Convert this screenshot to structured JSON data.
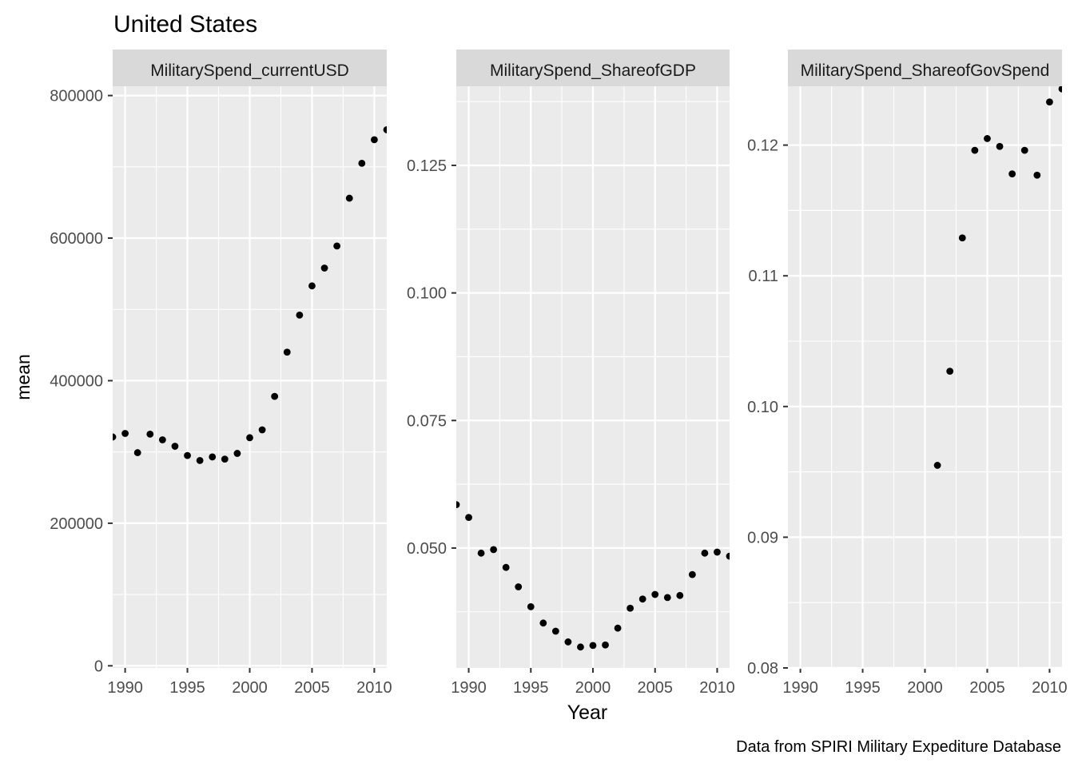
{
  "title": "United States",
  "ylabel": "mean",
  "xlabel": "Year",
  "caption": "Data from SPIRI Military Expediture Database",
  "colors": {
    "panel_bg": "#EBEBEB",
    "grid": "#FFFFFF",
    "strip_bg": "#D9D9D9",
    "point": "#000000",
    "tick_text": "#4D4D4D"
  },
  "chart_data": [
    {
      "type": "scatter",
      "strip": "MilitarySpend_currentUSD",
      "xlim": [
        1989,
        2011
      ],
      "ylim": [
        -3000,
        813000
      ],
      "x_ticks": [
        1990,
        1995,
        2000,
        2005,
        2010
      ],
      "x_tick_labels": [
        "1990",
        "1995",
        "2000",
        "2005",
        "2010"
      ],
      "y_ticks": [
        0,
        200000,
        400000,
        600000,
        800000
      ],
      "y_tick_labels": [
        "0",
        "200000",
        "400000",
        "600000",
        "800000"
      ],
      "x": [
        1989,
        1990,
        1991,
        1992,
        1993,
        1994,
        1995,
        1996,
        1997,
        1998,
        1999,
        2000,
        2001,
        2002,
        2003,
        2004,
        2005,
        2006,
        2007,
        2008,
        2009,
        2010,
        2011
      ],
      "y": [
        321000,
        326000,
        299000,
        325000,
        317000,
        308000,
        295000,
        288000,
        293000,
        290000,
        298000,
        320000,
        331000,
        378000,
        440000,
        492000,
        533000,
        558000,
        589000,
        656000,
        705000,
        738000,
        752000
      ]
    },
    {
      "type": "scatter",
      "strip": "MilitarySpend_ShareofGDP",
      "xlim": [
        1989,
        2011
      ],
      "ylim": [
        0.0265,
        0.1405
      ],
      "x_ticks": [
        1990,
        1995,
        2000,
        2005,
        2010
      ],
      "x_tick_labels": [
        "1990",
        "1995",
        "2000",
        "2005",
        "2010"
      ],
      "y_ticks": [
        0.05,
        0.075,
        0.1,
        0.125
      ],
      "y_tick_labels": [
        "0.050",
        "0.075",
        "0.100",
        "0.125"
      ],
      "x": [
        1989,
        1990,
        1991,
        1992,
        1993,
        1994,
        1995,
        1996,
        1997,
        1998,
        1999,
        2000,
        2001,
        2002,
        2003,
        2004,
        2005,
        2006,
        2007,
        2008,
        2009,
        2010,
        2011
      ],
      "y": [
        0.0585,
        0.056,
        0.049,
        0.0497,
        0.0462,
        0.0424,
        0.0385,
        0.0353,
        0.0337,
        0.0316,
        0.0306,
        0.0309,
        0.031,
        0.0343,
        0.0382,
        0.04,
        0.0409,
        0.0403,
        0.0407,
        0.0448,
        0.049,
        0.0492,
        0.0484
      ]
    },
    {
      "type": "scatter",
      "strip": "MilitarySpend_ShareofGovSpend",
      "xlim": [
        1989,
        2011
      ],
      "ylim": [
        0.08,
        0.1245
      ],
      "x_ticks": [
        1990,
        1995,
        2000,
        2005,
        2010
      ],
      "x_tick_labels": [
        "1990",
        "1995",
        "2000",
        "2005",
        "2010"
      ],
      "y_ticks": [
        0.08,
        0.09,
        0.1,
        0.11,
        0.12
      ],
      "y_tick_labels": [
        "0.08",
        "0.09",
        "0.10",
        "0.11",
        "0.12"
      ],
      "x": [
        2001,
        2002,
        2003,
        2004,
        2005,
        2006,
        2007,
        2008,
        2009,
        2010,
        2011
      ],
      "y": [
        0.0955,
        0.1027,
        0.1129,
        0.1196,
        0.1205,
        0.1199,
        0.1178,
        0.1196,
        0.1177,
        0.1233,
        0.1243
      ]
    }
  ]
}
